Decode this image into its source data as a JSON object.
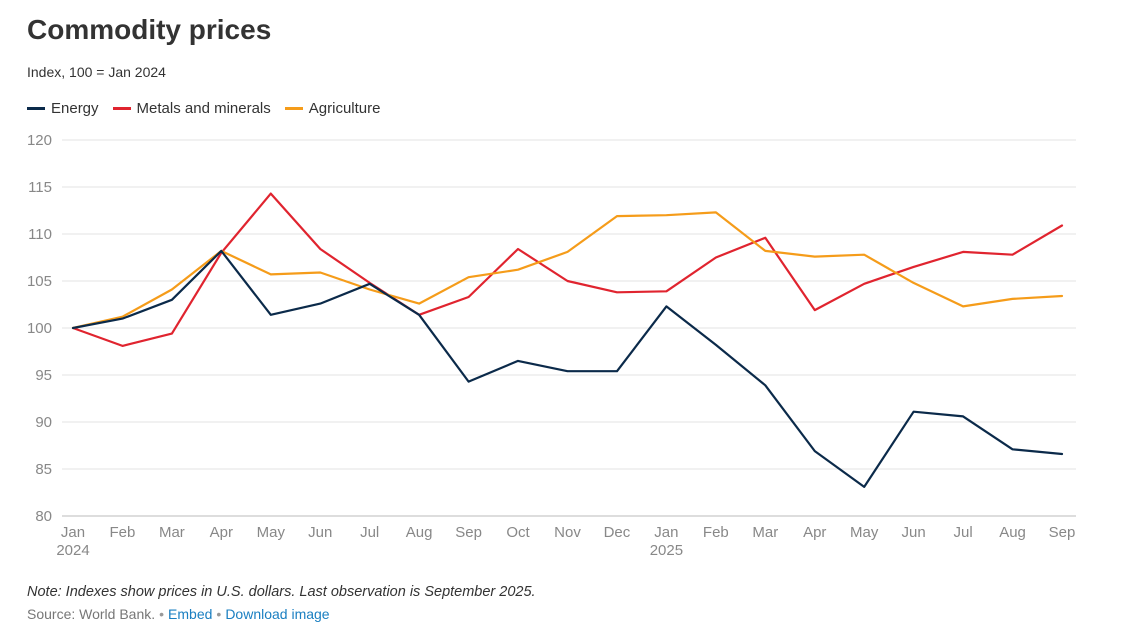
{
  "header": {
    "title": "Commodity prices",
    "subtitle": "Index, 100 = Jan 2024"
  },
  "legend": [
    {
      "label": "Energy",
      "color": "#0b2a4a"
    },
    {
      "label": "Metals and minerals",
      "color": "#e0242f"
    },
    {
      "label": "Agriculture",
      "color": "#f59c1a"
    }
  ],
  "footer": {
    "note": "Note: Indexes show prices in U.S. dollars. Last observation is September 2025.",
    "source": "Source: World Bank.",
    "embed_label": "Embed",
    "download_label": "Download image"
  },
  "chart_data": {
    "type": "line",
    "title": "Commodity prices",
    "subtitle": "Index, 100 = Jan 2024",
    "categories": [
      "Jan",
      "Feb",
      "Mar",
      "Apr",
      "May",
      "Jun",
      "Jul",
      "Aug",
      "Sep",
      "Oct",
      "Nov",
      "Dec",
      "Jan",
      "Feb",
      "Mar",
      "Apr",
      "May",
      "Jun",
      "Jul",
      "Aug",
      "Sep"
    ],
    "year_labels": {
      "0": "2024",
      "12": "2025"
    },
    "ylim": [
      80,
      120
    ],
    "yticks": [
      80,
      85,
      90,
      95,
      100,
      105,
      110,
      115,
      120
    ],
    "grid": true,
    "legend_position": "top-left",
    "series": [
      {
        "name": "Energy",
        "color": "#0b2a4a",
        "values": [
          100,
          101,
          103,
          108.2,
          101.4,
          102.6,
          104.7,
          101.4,
          94.3,
          96.5,
          95.4,
          95.4,
          102.3,
          98.2,
          93.9,
          86.9,
          83.1,
          91.1,
          90.6,
          87.1,
          86.6
        ]
      },
      {
        "name": "Metals and minerals",
        "color": "#e0242f",
        "values": [
          100,
          98.1,
          99.4,
          108,
          114.3,
          108.4,
          104.8,
          101.4,
          103.3,
          108.4,
          105,
          103.8,
          103.9,
          107.5,
          109.6,
          101.9,
          104.7,
          106.5,
          108.1,
          107.8,
          110.9
        ]
      },
      {
        "name": "Agriculture",
        "color": "#f59c1a",
        "values": [
          100,
          101.2,
          104.1,
          108.2,
          105.7,
          105.9,
          104.1,
          102.6,
          105.4,
          106.2,
          108.1,
          111.9,
          112,
          112.3,
          108.2,
          107.6,
          107.8,
          104.8,
          102.3,
          103.1,
          103.4
        ]
      }
    ]
  }
}
